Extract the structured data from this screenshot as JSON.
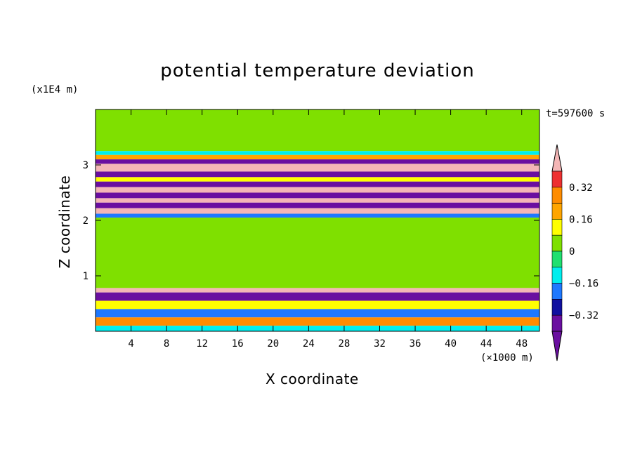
{
  "chart_data": {
    "type": "heatmap",
    "title": "potential temperature deviation",
    "xlabel": "X coordinate",
    "ylabel": "Z coordinate",
    "x_unit": "(×1000 m)",
    "y_unit": "(x1E4 m)",
    "time_label": "t=597600 s",
    "xlim": [
      0,
      50
    ],
    "ylim": [
      0,
      4
    ],
    "x_ticks": [
      "4",
      "8",
      "12",
      "16",
      "20",
      "24",
      "28",
      "32",
      "36",
      "40",
      "44",
      "48"
    ],
    "y_ticks": [
      "1",
      "2",
      "3"
    ],
    "colorbar": {
      "labels": [
        "0.32",
        "0.16",
        "0",
        "−0.16",
        "−0.32"
      ],
      "label_values": [
        0.32,
        0.16,
        0,
        -0.16,
        -0.32
      ],
      "levels": [
        0.4,
        0.32,
        0.24,
        0.16,
        0.08,
        0,
        -0.08,
        -0.16,
        -0.24,
        -0.32,
        -0.4
      ],
      "colors": [
        "#ee3030",
        "#ff8c00",
        "#ffa500",
        "#ffff00",
        "#7fe000",
        "#20e070",
        "#00eeee",
        "#1e78ff",
        "#1010a0",
        "#6a0fa0"
      ],
      "over_color": "#f4b6b6",
      "under_color": "#6a0fa0"
    },
    "bands": [
      {
        "z_top": 4.0,
        "z_bottom": 3.25,
        "value": 0.0
      },
      {
        "z_top": 3.25,
        "z_bottom": 3.18,
        "value": -0.12
      },
      {
        "z_top": 3.18,
        "z_bottom": 3.1,
        "value": 0.2
      },
      {
        "z_top": 3.1,
        "z_bottom": 3.02,
        "value": -0.4
      },
      {
        "z_top": 3.02,
        "z_bottom": 2.88,
        "value": 0.45
      },
      {
        "z_top": 2.88,
        "z_bottom": 2.78,
        "value": -0.36
      },
      {
        "z_top": 2.78,
        "z_bottom": 2.7,
        "value": 0.1
      },
      {
        "z_top": 2.7,
        "z_bottom": 2.6,
        "value": -0.4
      },
      {
        "z_top": 2.6,
        "z_bottom": 2.5,
        "value": 0.45
      },
      {
        "z_top": 2.5,
        "z_bottom": 2.4,
        "value": -0.4
      },
      {
        "z_top": 2.4,
        "z_bottom": 2.32,
        "value": 0.45
      },
      {
        "z_top": 2.32,
        "z_bottom": 2.22,
        "value": -0.36
      },
      {
        "z_top": 2.22,
        "z_bottom": 2.12,
        "value": 0.45
      },
      {
        "z_top": 2.12,
        "z_bottom": 2.05,
        "value": -0.2
      },
      {
        "z_top": 2.05,
        "z_bottom": 0.78,
        "value": 0.04
      },
      {
        "z_top": 0.78,
        "z_bottom": 0.7,
        "value": 0.45
      },
      {
        "z_top": 0.7,
        "z_bottom": 0.55,
        "value": -0.4
      },
      {
        "z_top": 0.55,
        "z_bottom": 0.4,
        "value": 0.1
      },
      {
        "z_top": 0.4,
        "z_bottom": 0.25,
        "value": -0.2
      },
      {
        "z_top": 0.25,
        "z_bottom": 0.1,
        "value": 0.25
      },
      {
        "z_top": 0.1,
        "z_bottom": 0.0,
        "value": -0.1
      }
    ]
  }
}
